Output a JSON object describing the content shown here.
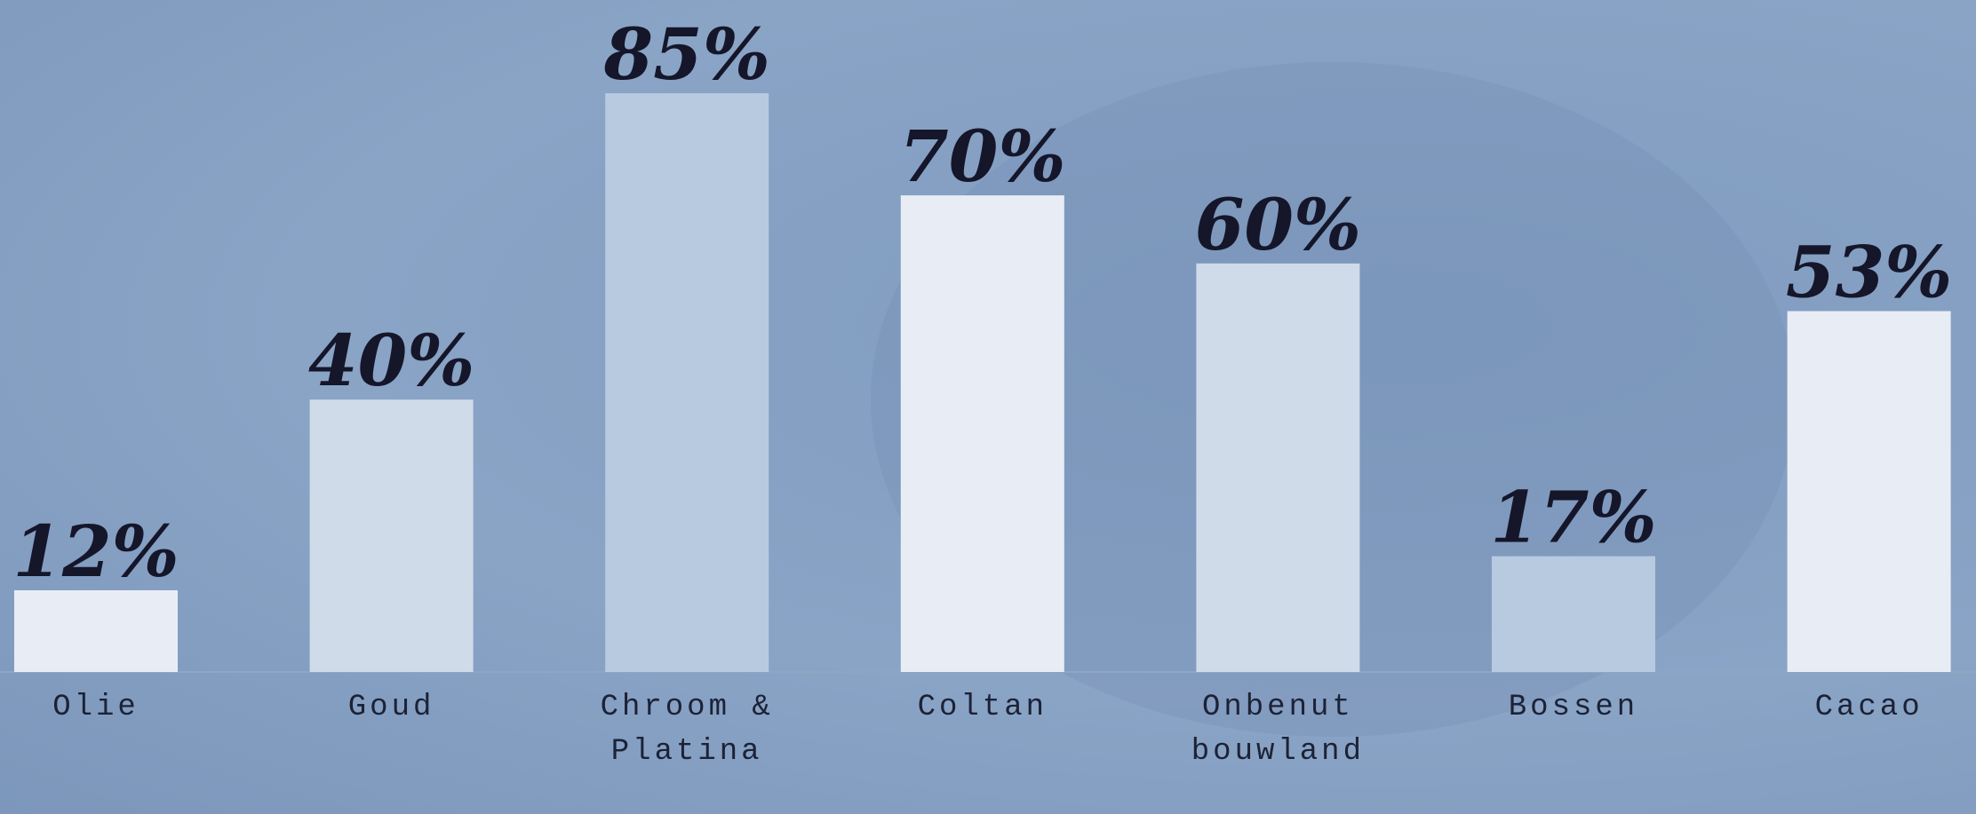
{
  "chart_data": {
    "type": "bar",
    "categories": [
      "Olie",
      "Goud",
      "Chroom & Platina",
      "Coltan",
      "Onbenut bouwland",
      "Bossen",
      "Cacao"
    ],
    "values": [
      12,
      40,
      85,
      70,
      60,
      17,
      53
    ],
    "value_labels": [
      "12%",
      "40%",
      "85%",
      "70%",
      "60%",
      "17%",
      "53%"
    ],
    "colors": [
      "#e8edf5",
      "#d0dbe9",
      "#b8cae0",
      "#e8edf5",
      "#d0dbe9",
      "#b8cae0",
      "#e8edf5"
    ],
    "ylim": [
      0,
      100
    ]
  }
}
